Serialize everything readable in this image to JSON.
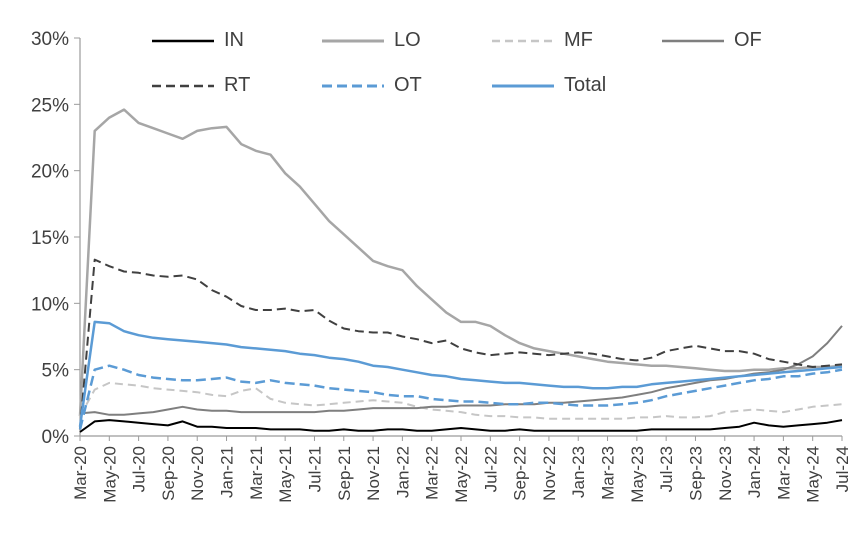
{
  "chart_data": {
    "type": "line",
    "title": "",
    "xlabel": "",
    "ylabel": "",
    "ylim": [
      0,
      30
    ],
    "ytick_step": 5,
    "ytick_suffix": "%",
    "grid": false,
    "legend_position": "top",
    "x_tick_every": 2,
    "colors": {
      "axis": "#9b9b9b",
      "text": "#404040",
      "accent_blue": "#5b9bd5"
    },
    "x": [
      "Mar-20",
      "Apr-20",
      "May-20",
      "Jun-20",
      "Jul-20",
      "Aug-20",
      "Sep-20",
      "Oct-20",
      "Nov-20",
      "Dec-20",
      "Jan-21",
      "Feb-21",
      "Mar-21",
      "Apr-21",
      "May-21",
      "Jun-21",
      "Jul-21",
      "Aug-21",
      "Sep-21",
      "Oct-21",
      "Nov-21",
      "Dec-21",
      "Jan-22",
      "Feb-22",
      "Mar-22",
      "Apr-22",
      "May-22",
      "Jun-22",
      "Jul-22",
      "Aug-22",
      "Sep-22",
      "Oct-22",
      "Nov-22",
      "Dec-22",
      "Jan-23",
      "Feb-23",
      "Mar-23",
      "Apr-23",
      "May-23",
      "Jun-23",
      "Jul-23",
      "Aug-23",
      "Sep-23",
      "Oct-23",
      "Nov-23",
      "Dec-23",
      "Jan-24",
      "Feb-24",
      "Mar-24",
      "Apr-24",
      "May-24",
      "Jun-24",
      "Jul-24"
    ],
    "series": [
      {
        "name": "IN",
        "color": "#000000",
        "dash": "solid",
        "width": 2,
        "values": [
          0.3,
          1.1,
          1.2,
          1.1,
          1.0,
          0.9,
          0.8,
          1.1,
          0.7,
          0.7,
          0.6,
          0.6,
          0.6,
          0.5,
          0.5,
          0.5,
          0.4,
          0.4,
          0.5,
          0.4,
          0.4,
          0.5,
          0.5,
          0.4,
          0.4,
          0.5,
          0.6,
          0.5,
          0.4,
          0.4,
          0.5,
          0.4,
          0.4,
          0.4,
          0.4,
          0.4,
          0.4,
          0.4,
          0.4,
          0.5,
          0.5,
          0.5,
          0.5,
          0.5,
          0.6,
          0.7,
          1.0,
          0.8,
          0.7,
          0.8,
          0.9,
          1.0,
          1.2
        ]
      },
      {
        "name": "LO",
        "color": "#a6a6a6",
        "dash": "solid",
        "width": 2.5,
        "values": [
          1.5,
          23.0,
          24.0,
          24.6,
          23.6,
          23.2,
          22.8,
          22.4,
          23.0,
          23.2,
          23.3,
          22.0,
          21.5,
          21.2,
          19.8,
          18.8,
          17.5,
          16.2,
          15.2,
          14.2,
          13.2,
          12.8,
          12.5,
          11.3,
          10.3,
          9.3,
          8.6,
          8.6,
          8.3,
          7.6,
          7.0,
          6.6,
          6.4,
          6.2,
          6.0,
          5.8,
          5.6,
          5.5,
          5.4,
          5.3,
          5.3,
          5.2,
          5.1,
          5.0,
          4.9,
          4.9,
          5.0,
          5.0,
          5.1,
          5.1,
          5.2,
          5.2,
          5.3
        ]
      },
      {
        "name": "MF",
        "color": "#c6c6c6",
        "dash": "dashed",
        "dash_pattern": "8,5",
        "width": 2,
        "values": [
          1.5,
          3.5,
          4.0,
          3.9,
          3.8,
          3.6,
          3.5,
          3.4,
          3.3,
          3.1,
          3.0,
          3.4,
          3.6,
          2.8,
          2.5,
          2.4,
          2.3,
          2.4,
          2.5,
          2.6,
          2.7,
          2.6,
          2.5,
          2.2,
          2.0,
          1.9,
          1.8,
          1.6,
          1.5,
          1.5,
          1.4,
          1.4,
          1.3,
          1.3,
          1.3,
          1.3,
          1.3,
          1.3,
          1.4,
          1.4,
          1.5,
          1.4,
          1.4,
          1.5,
          1.8,
          1.9,
          2.0,
          1.9,
          1.8,
          2.0,
          2.2,
          2.3,
          2.4
        ]
      },
      {
        "name": "OF",
        "color": "#7f7f7f",
        "dash": "solid",
        "width": 2,
        "values": [
          1.7,
          1.8,
          1.6,
          1.6,
          1.7,
          1.8,
          2.0,
          2.2,
          2.0,
          1.9,
          1.9,
          1.8,
          1.8,
          1.8,
          1.8,
          1.8,
          1.8,
          1.9,
          1.9,
          2.0,
          2.1,
          2.1,
          2.1,
          2.1,
          2.2,
          2.2,
          2.3,
          2.3,
          2.3,
          2.4,
          2.4,
          2.4,
          2.5,
          2.5,
          2.6,
          2.7,
          2.8,
          2.9,
          3.1,
          3.3,
          3.6,
          3.8,
          4.0,
          4.2,
          4.3,
          4.5,
          4.7,
          4.8,
          5.0,
          5.4,
          6.0,
          7.0,
          8.3
        ]
      },
      {
        "name": "RT",
        "color": "#404040",
        "dash": "dashed",
        "dash_pattern": "9,5",
        "width": 2,
        "values": [
          0.5,
          13.3,
          12.8,
          12.4,
          12.3,
          12.1,
          12.0,
          12.1,
          11.8,
          11.0,
          10.5,
          9.8,
          9.5,
          9.5,
          9.6,
          9.4,
          9.5,
          8.7,
          8.1,
          7.9,
          7.8,
          7.8,
          7.5,
          7.3,
          7.0,
          7.2,
          6.6,
          6.3,
          6.1,
          6.2,
          6.3,
          6.2,
          6.1,
          6.2,
          6.3,
          6.2,
          6.0,
          5.8,
          5.7,
          5.9,
          6.4,
          6.6,
          6.8,
          6.6,
          6.4,
          6.4,
          6.2,
          5.8,
          5.6,
          5.4,
          5.2,
          5.3,
          5.4
        ]
      },
      {
        "name": "OT",
        "color": "#5b9bd5",
        "dash": "dashed",
        "dash_pattern": "10,5",
        "width": 2.5,
        "values": [
          0.5,
          5.0,
          5.3,
          5.0,
          4.6,
          4.4,
          4.3,
          4.2,
          4.2,
          4.3,
          4.4,
          4.1,
          4.0,
          4.2,
          4.0,
          3.9,
          3.8,
          3.6,
          3.5,
          3.4,
          3.3,
          3.1,
          3.0,
          3.0,
          2.8,
          2.7,
          2.6,
          2.6,
          2.5,
          2.4,
          2.4,
          2.5,
          2.5,
          2.4,
          2.3,
          2.3,
          2.3,
          2.4,
          2.5,
          2.7,
          3.0,
          3.2,
          3.4,
          3.6,
          3.8,
          4.0,
          4.2,
          4.3,
          4.5,
          4.5,
          4.7,
          4.8,
          5.0
        ]
      },
      {
        "name": "Total",
        "color": "#5b9bd5",
        "dash": "solid",
        "width": 2.5,
        "values": [
          0.7,
          8.6,
          8.5,
          7.9,
          7.6,
          7.4,
          7.3,
          7.2,
          7.1,
          7.0,
          6.9,
          6.7,
          6.6,
          6.5,
          6.4,
          6.2,
          6.1,
          5.9,
          5.8,
          5.6,
          5.3,
          5.2,
          5.0,
          4.8,
          4.6,
          4.5,
          4.3,
          4.2,
          4.1,
          4.0,
          4.0,
          3.9,
          3.8,
          3.7,
          3.7,
          3.6,
          3.6,
          3.7,
          3.7,
          3.9,
          4.0,
          4.1,
          4.2,
          4.3,
          4.4,
          4.5,
          4.6,
          4.7,
          4.8,
          4.9,
          5.0,
          5.1,
          5.2
        ]
      }
    ],
    "legend_rows": [
      [
        "IN",
        "LO",
        "MF",
        "OF"
      ],
      [
        "RT",
        "OT",
        "Total"
      ]
    ]
  }
}
